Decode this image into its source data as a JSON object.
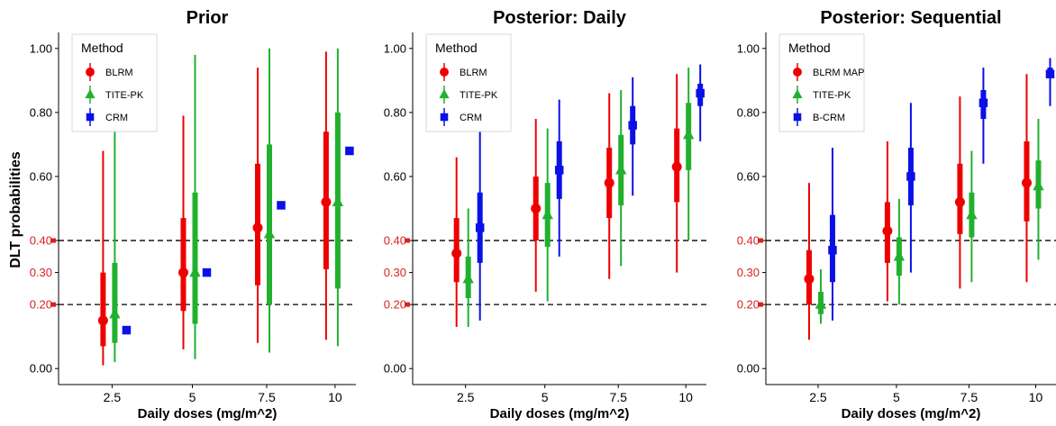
{
  "shared": {
    "ylabel": "DLT probabilities",
    "xlabel": "Daily doses (mg/m^2)",
    "legend_title": "Method",
    "x_categories": [
      "2.5",
      "5",
      "7.5",
      "10"
    ],
    "y_ticks_black": [
      "0.00",
      "0.60",
      "0.80",
      "1.00"
    ],
    "y_ticks_red": [
      "0.20",
      "0.30",
      "0.40"
    ],
    "y_tick_values": [
      0,
      0.2,
      0.3,
      0.4,
      0.6,
      0.8,
      1.0
    ],
    "reference_lines": [
      0.2,
      0.4
    ],
    "colors": {
      "red": "#ee0000",
      "green": "#22b02f",
      "blue": "#0a10e6",
      "tick_red": "#dd1f1f",
      "axis": "#000000"
    }
  },
  "chart_data": [
    {
      "type": "interval",
      "title": "Prior",
      "xlabel": "Daily doses (mg/m^2)",
      "ylabel": "DLT probabilities",
      "ylim": [
        -0.05,
        1.05
      ],
      "legend_position": "top-left",
      "series": [
        {
          "name": "BLRM",
          "color": "red",
          "marker": "circle",
          "points": [
            {
              "x": "2.5",
              "median": 0.15,
              "q25": 0.07,
              "q75": 0.3,
              "q2_5": 0.01,
              "q97_5": 0.68
            },
            {
              "x": "5",
              "median": 0.3,
              "q25": 0.18,
              "q75": 0.47,
              "q2_5": 0.06,
              "q97_5": 0.79
            },
            {
              "x": "7.5",
              "median": 0.44,
              "q25": 0.26,
              "q75": 0.64,
              "q2_5": 0.08,
              "q97_5": 0.94
            },
            {
              "x": "10",
              "median": 0.52,
              "q25": 0.31,
              "q75": 0.74,
              "q2_5": 0.09,
              "q97_5": 0.99
            }
          ]
        },
        {
          "name": "TITE-PK",
          "color": "green",
          "marker": "triangle",
          "points": [
            {
              "x": "2.5",
              "median": 0.17,
              "q25": 0.08,
              "q75": 0.33,
              "q2_5": 0.02,
              "q97_5": 0.77
            },
            {
              "x": "5",
              "median": 0.3,
              "q25": 0.14,
              "q75": 0.55,
              "q2_5": 0.03,
              "q97_5": 0.98
            },
            {
              "x": "7.5",
              "median": 0.42,
              "q25": 0.2,
              "q75": 0.7,
              "q2_5": 0.05,
              "q97_5": 1.0
            },
            {
              "x": "10",
              "median": 0.52,
              "q25": 0.25,
              "q75": 0.8,
              "q2_5": 0.07,
              "q97_5": 1.0
            }
          ]
        },
        {
          "name": "CRM",
          "color": "blue",
          "marker": "square",
          "points": [
            {
              "x": "2.5",
              "median": 0.12
            },
            {
              "x": "5",
              "median": 0.3
            },
            {
              "x": "7.5",
              "median": 0.51
            },
            {
              "x": "10",
              "median": 0.68
            }
          ]
        }
      ]
    },
    {
      "type": "interval",
      "title": "Posterior: Daily",
      "xlabel": "Daily doses (mg/m^2)",
      "ylabel": "DLT probabilities",
      "ylim": [
        -0.05,
        1.05
      ],
      "legend_position": "top-left",
      "series": [
        {
          "name": "BLRM",
          "color": "red",
          "marker": "circle",
          "points": [
            {
              "x": "2.5",
              "median": 0.36,
              "q25": 0.27,
              "q75": 0.47,
              "q2_5": 0.13,
              "q97_5": 0.66
            },
            {
              "x": "5",
              "median": 0.5,
              "q25": 0.4,
              "q75": 0.6,
              "q2_5": 0.24,
              "q97_5": 0.78
            },
            {
              "x": "7.5",
              "median": 0.58,
              "q25": 0.47,
              "q75": 0.69,
              "q2_5": 0.28,
              "q97_5": 0.86
            },
            {
              "x": "10",
              "median": 0.63,
              "q25": 0.52,
              "q75": 0.75,
              "q2_5": 0.3,
              "q97_5": 0.92
            }
          ]
        },
        {
          "name": "TITE-PK",
          "color": "green",
          "marker": "triangle",
          "points": [
            {
              "x": "2.5",
              "median": 0.28,
              "q25": 0.22,
              "q75": 0.35,
              "q2_5": 0.13,
              "q97_5": 0.5
            },
            {
              "x": "5",
              "median": 0.48,
              "q25": 0.38,
              "q75": 0.58,
              "q2_5": 0.21,
              "q97_5": 0.75
            },
            {
              "x": "7.5",
              "median": 0.62,
              "q25": 0.51,
              "q75": 0.73,
              "q2_5": 0.32,
              "q97_5": 0.87
            },
            {
              "x": "10",
              "median": 0.73,
              "q25": 0.62,
              "q75": 0.83,
              "q2_5": 0.4,
              "q97_5": 0.94
            }
          ]
        },
        {
          "name": "CRM",
          "color": "blue",
          "marker": "square",
          "points": [
            {
              "x": "2.5",
              "median": 0.44,
              "q25": 0.33,
              "q75": 0.55,
              "q2_5": 0.15,
              "q97_5": 0.74
            },
            {
              "x": "5",
              "median": 0.62,
              "q25": 0.53,
              "q75": 0.71,
              "q2_5": 0.35,
              "q97_5": 0.84
            },
            {
              "x": "7.5",
              "median": 0.76,
              "q25": 0.7,
              "q75": 0.82,
              "q2_5": 0.54,
              "q97_5": 0.91
            },
            {
              "x": "10",
              "median": 0.86,
              "q25": 0.82,
              "q75": 0.89,
              "q2_5": 0.71,
              "q97_5": 0.95
            }
          ]
        }
      ]
    },
    {
      "type": "interval",
      "title": "Posterior: Sequential",
      "xlabel": "Daily doses (mg/m^2)",
      "ylabel": "DLT probabilities",
      "ylim": [
        -0.05,
        1.05
      ],
      "legend_position": "top-left",
      "series": [
        {
          "name": "BLRM MAP",
          "color": "red",
          "marker": "circle",
          "points": [
            {
              "x": "2.5",
              "median": 0.28,
              "q25": 0.2,
              "q75": 0.37,
              "q2_5": 0.09,
              "q97_5": 0.58
            },
            {
              "x": "5",
              "median": 0.43,
              "q25": 0.33,
              "q75": 0.52,
              "q2_5": 0.21,
              "q97_5": 0.71
            },
            {
              "x": "7.5",
              "median": 0.52,
              "q25": 0.42,
              "q75": 0.64,
              "q2_5": 0.25,
              "q97_5": 0.85
            },
            {
              "x": "10",
              "median": 0.58,
              "q25": 0.46,
              "q75": 0.71,
              "q2_5": 0.27,
              "q97_5": 0.92
            }
          ]
        },
        {
          "name": "TITE-PK",
          "color": "green",
          "marker": "triangle",
          "points": [
            {
              "x": "2.5",
              "median": 0.2,
              "q25": 0.17,
              "q75": 0.24,
              "q2_5": 0.14,
              "q97_5": 0.31
            },
            {
              "x": "5",
              "median": 0.35,
              "q25": 0.29,
              "q75": 0.41,
              "q2_5": 0.2,
              "q97_5": 0.53
            },
            {
              "x": "7.5",
              "median": 0.48,
              "q25": 0.41,
              "q75": 0.55,
              "q2_5": 0.27,
              "q97_5": 0.68
            },
            {
              "x": "10",
              "median": 0.57,
              "q25": 0.5,
              "q75": 0.65,
              "q2_5": 0.34,
              "q97_5": 0.78
            }
          ]
        },
        {
          "name": "B-CRM",
          "color": "blue",
          "marker": "square",
          "points": [
            {
              "x": "2.5",
              "median": 0.37,
              "q25": 0.27,
              "q75": 0.48,
              "q2_5": 0.15,
              "q97_5": 0.69
            },
            {
              "x": "5",
              "median": 0.6,
              "q25": 0.51,
              "q75": 0.69,
              "q2_5": 0.3,
              "q97_5": 0.83
            },
            {
              "x": "7.5",
              "median": 0.83,
              "q25": 0.78,
              "q75": 0.87,
              "q2_5": 0.64,
              "q97_5": 0.94
            },
            {
              "x": "10",
              "median": 0.92,
              "q25": 0.91,
              "q75": 0.94,
              "q2_5": 0.82,
              "q97_5": 0.97
            }
          ]
        }
      ]
    }
  ]
}
